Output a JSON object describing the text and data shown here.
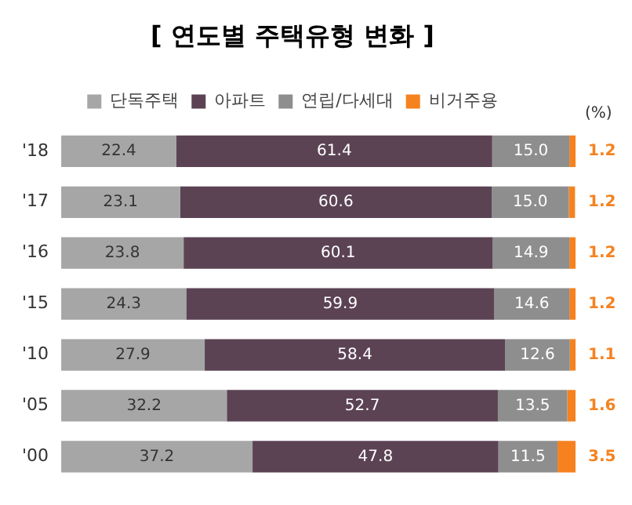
{
  "chart_data": {
    "type": "bar",
    "orientation": "horizontal",
    "stacked": true,
    "title": "[ 연도별 주택유형 변화 ]",
    "categories": [
      "'18",
      "'17",
      "'16",
      "'15",
      "'10",
      "'05",
      "'00"
    ],
    "series": [
      {
        "name": "단독주택",
        "color": "#a6a6a6",
        "values": [
          22.4,
          23.1,
          23.8,
          24.3,
          27.9,
          32.2,
          37.2
        ],
        "value_labels": [
          "22.4",
          "23.1",
          "23.8",
          "24.3",
          "27.9",
          "32.2",
          "37.2"
        ]
      },
      {
        "name": "아파트",
        "color": "#5b4354",
        "values": [
          61.4,
          60.6,
          60.1,
          59.9,
          58.4,
          52.7,
          47.8
        ],
        "value_labels": [
          "61.4",
          "60.6",
          "60.1",
          "59.9",
          "58.4",
          "52.7",
          "47.8"
        ]
      },
      {
        "name": "연립/다세대",
        "color": "#8e8e8e",
        "values": [
          15.0,
          15.0,
          14.9,
          14.6,
          12.6,
          13.5,
          11.5
        ],
        "value_labels": [
          "15.0",
          "15.0",
          "14.9",
          "14.6",
          "12.6",
          "13.5",
          "11.5"
        ]
      },
      {
        "name": "비거주용",
        "color": "#f5821f",
        "values": [
          1.2,
          1.2,
          1.2,
          1.2,
          1.1,
          1.6,
          3.5
        ],
        "value_labels": [
          "1.2",
          "1.2",
          "1.2",
          "1.2",
          "1.1",
          "1.6",
          "3.5"
        ]
      }
    ],
    "xlim": [
      0,
      100
    ],
    "tick_labels": "y",
    "grid": false,
    "legend": "top",
    "annotations": [
      "(%)"
    ]
  }
}
